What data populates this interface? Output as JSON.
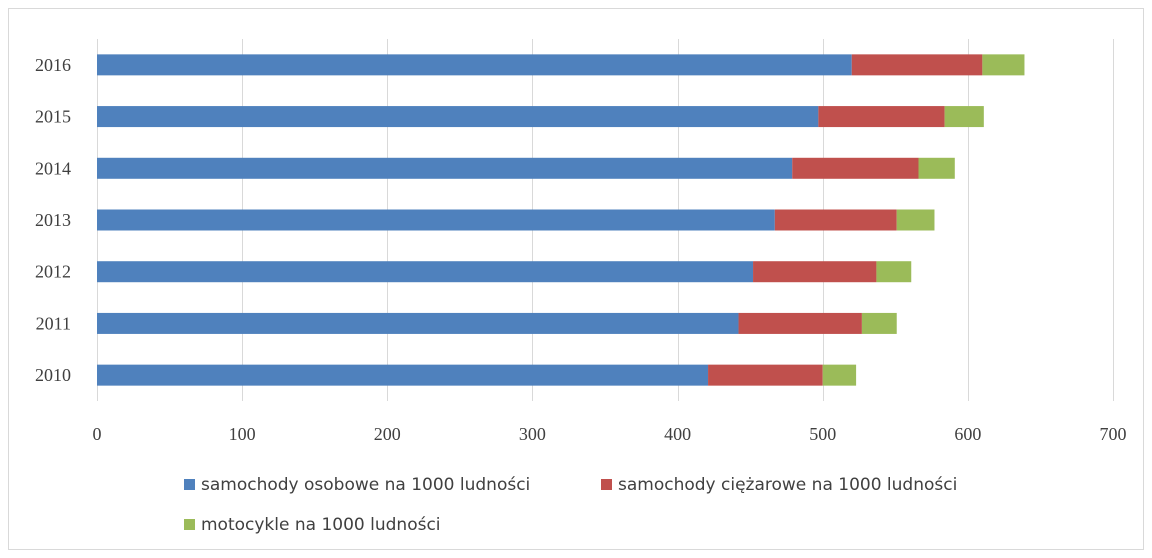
{
  "chart_data": {
    "type": "bar",
    "orientation": "horizontal",
    "stacked": true,
    "categories": [
      "2010",
      "2011",
      "2012",
      "2013",
      "2014",
      "2015",
      "2016"
    ],
    "series": [
      {
        "name": "samochody osobowe na 1000 ludności",
        "color": "#4f81bd",
        "values": [
          421,
          442,
          452,
          467,
          479,
          497,
          520
        ]
      },
      {
        "name": "samochody ciężarowe na 1000 ludności",
        "color": "#c0504d",
        "values": [
          79,
          85,
          85,
          84,
          87,
          87,
          90
        ]
      },
      {
        "name": "motocykle na 1000 ludności",
        "color": "#9bbb59",
        "values": [
          23,
          24,
          24,
          26,
          25,
          27,
          29
        ]
      }
    ],
    "xlim": [
      0,
      700
    ],
    "xticks": [
      "0",
      "100",
      "200",
      "300",
      "400",
      "500",
      "600",
      "700"
    ],
    "grid": "vertical",
    "legend": "bottom"
  }
}
